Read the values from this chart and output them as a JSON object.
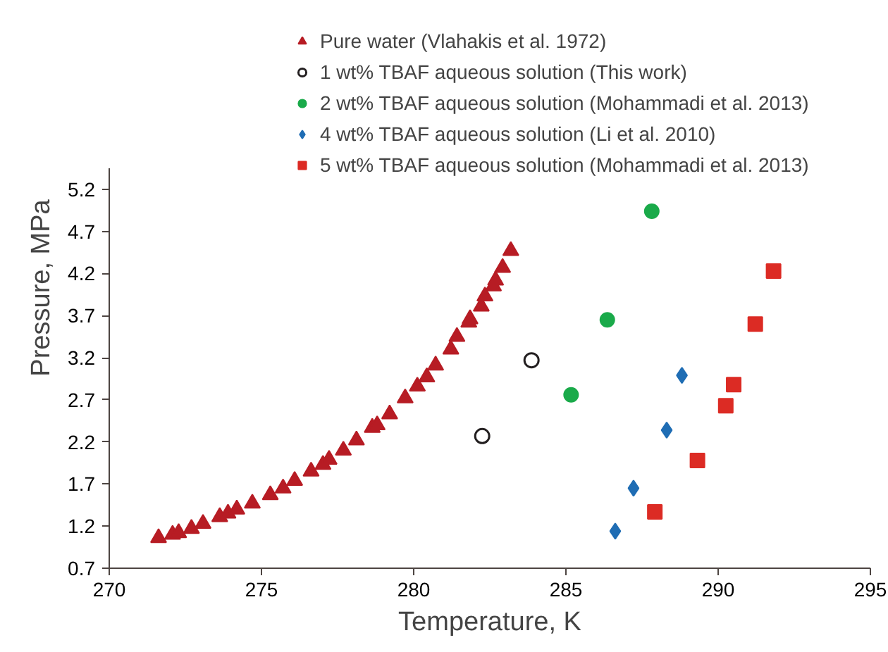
{
  "chart_data": {
    "type": "scatter",
    "xlabel": "Temperature, K",
    "ylabel": "Pressure, MPa",
    "xlim": [
      270,
      295
    ],
    "xticks": [
      270,
      275,
      280,
      285,
      290,
      295
    ],
    "ylim": [
      0.7,
      5.45
    ],
    "yticks": [
      0.7,
      1.2,
      1.7,
      2.2,
      2.7,
      3.2,
      3.7,
      4.2,
      4.7,
      5.2
    ],
    "grid": false,
    "legend": "top right",
    "series": [
      {
        "name": "Pure water (Vlahakis et al. 1972)",
        "color": "#b71c24",
        "marker": "triangle",
        "x": [
          271.62,
          272.08,
          272.28,
          272.7,
          273.08,
          273.63,
          273.9,
          274.19,
          274.7,
          275.29,
          275.71,
          276.09,
          276.63,
          277.02,
          277.22,
          277.69,
          278.12,
          278.64,
          278.8,
          279.21,
          279.72,
          280.12,
          280.43,
          280.72,
          281.22,
          281.42,
          281.81,
          281.85,
          282.22,
          282.34,
          282.62,
          282.69,
          282.92,
          283.19
        ],
        "values": [
          1.06,
          1.1,
          1.12,
          1.17,
          1.23,
          1.31,
          1.35,
          1.4,
          1.47,
          1.57,
          1.65,
          1.74,
          1.85,
          1.93,
          1.99,
          2.1,
          2.22,
          2.37,
          2.4,
          2.53,
          2.72,
          2.86,
          2.97,
          3.11,
          3.3,
          3.45,
          3.62,
          3.66,
          3.81,
          3.93,
          4.05,
          4.12,
          4.27,
          4.47
        ]
      },
      {
        "name": "1 wt% TBAF aqueous solution (This work)",
        "color": "#231f20",
        "marker": "circle_open",
        "x": [
          282.25,
          283.87
        ],
        "values": [
          2.27,
          3.17
        ]
      },
      {
        "name": "2 wt% TBAF aqueous solution (Mohammadi et al. 2013)",
        "color": "#1aaa4a",
        "marker": "circle",
        "x": [
          285.17,
          286.36,
          287.82
        ],
        "values": [
          2.76,
          3.65,
          4.94
        ]
      },
      {
        "name": "4 wt% TBAF aqueous solution (Li et al. 2010)",
        "color": "#1f6db4",
        "marker": "diamond",
        "x": [
          286.62,
          287.22,
          288.31,
          288.81
        ],
        "values": [
          1.14,
          1.65,
          2.34,
          2.99
        ]
      },
      {
        "name": "5 wt% TBAF aqueous solution (Mohammadi et al. 2013)",
        "color": "#dc2b24",
        "marker": "square",
        "x": [
          287.92,
          289.32,
          290.25,
          290.51,
          291.22,
          291.82
        ],
        "values": [
          1.37,
          1.98,
          2.63,
          2.88,
          3.6,
          4.23
        ]
      }
    ]
  }
}
